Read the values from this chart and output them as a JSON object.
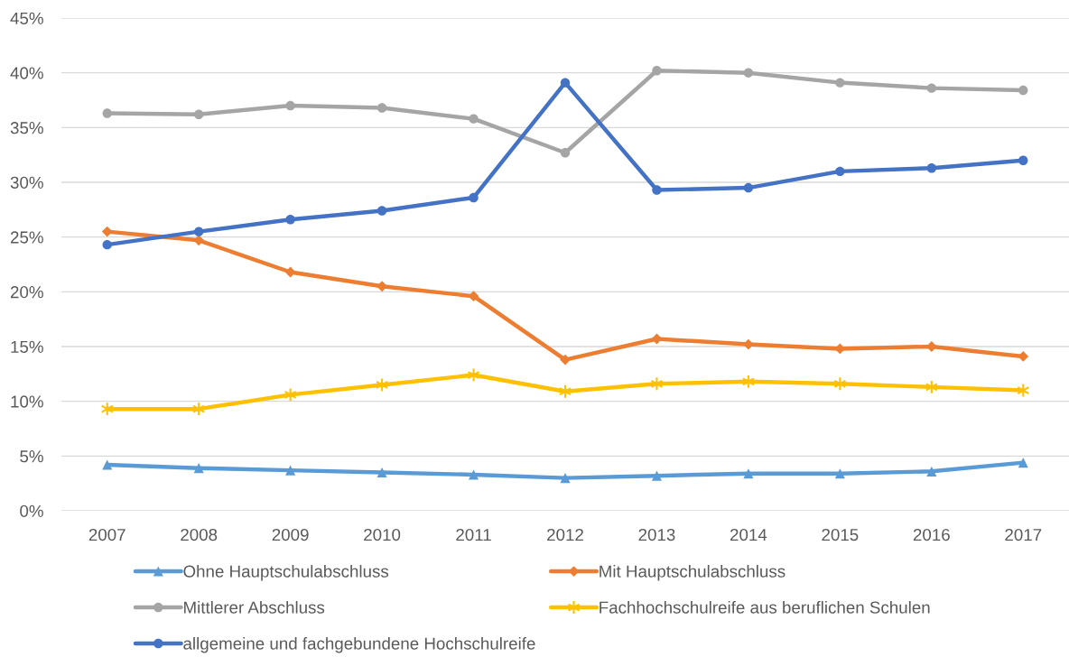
{
  "chart_data": {
    "type": "line",
    "categories": [
      "2007",
      "2008",
      "2009",
      "2010",
      "2011",
      "2012",
      "2013",
      "2014",
      "2015",
      "2016",
      "2017"
    ],
    "series": [
      {
        "name": "Ohne Hauptschulabschluss",
        "color": "#5b9bd5",
        "marker": "triangle",
        "values": [
          4.2,
          3.9,
          3.7,
          3.5,
          3.3,
          3.0,
          3.2,
          3.4,
          3.4,
          3.6,
          4.4
        ]
      },
      {
        "name": "Mit Hauptschulabschluss",
        "color": "#ed7d31",
        "marker": "diamond",
        "values": [
          25.5,
          24.7,
          21.8,
          20.5,
          19.6,
          13.8,
          15.7,
          15.2,
          14.8,
          15.0,
          14.1
        ]
      },
      {
        "name": "Mittlerer Abschluss",
        "color": "#a5a5a5",
        "marker": "circle",
        "values": [
          36.3,
          36.2,
          37.0,
          36.8,
          35.8,
          32.7,
          40.2,
          40.0,
          39.1,
          38.6,
          38.4
        ]
      },
      {
        "name": "Fachhochschulreife aus beruflichen Schulen",
        "color": "#ffc000",
        "marker": "cross",
        "values": [
          9.3,
          9.3,
          10.6,
          11.5,
          12.4,
          10.9,
          11.6,
          11.8,
          11.6,
          11.3,
          11.0
        ]
      },
      {
        "name": "allgemeine und fachgebundene Hochschulreife",
        "color": "#4472c4",
        "marker": "circle",
        "values": [
          24.3,
          25.5,
          26.6,
          27.4,
          28.6,
          39.1,
          29.3,
          29.5,
          31.0,
          31.3,
          32.0
        ]
      }
    ],
    "ylim": [
      0,
      45
    ],
    "yticks": [
      {
        "value": 0,
        "label": "0%"
      },
      {
        "value": 5,
        "label": "5%"
      },
      {
        "value": 10,
        "label": "10%"
      },
      {
        "value": 15,
        "label": "15%"
      },
      {
        "value": 20,
        "label": "20%"
      },
      {
        "value": 25,
        "label": "25%"
      },
      {
        "value": 30,
        "label": "30%"
      },
      {
        "value": 35,
        "label": "35%"
      },
      {
        "value": 40,
        "label": "40%"
      },
      {
        "value": 45,
        "label": "45%"
      }
    ],
    "grid": "y",
    "legend": "bottom",
    "line_style": "solid"
  }
}
